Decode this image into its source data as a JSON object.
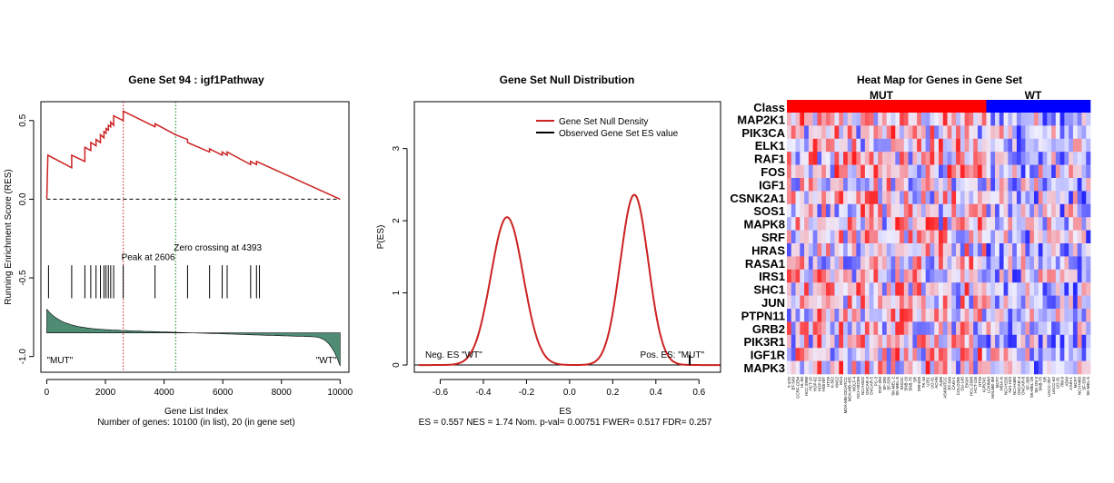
{
  "chart_data": [
    {
      "type": "line",
      "title": "Gene Set  94 : igf1Pathway",
      "xlabel": "Gene List Index",
      "ylabel": "Running Enrichment Score (RES)",
      "subtitle": "Number of genes: 10100 (in list), 20 (in gene set)",
      "xlim": [
        -200,
        10300
      ],
      "ylim": [
        -1.1,
        0.62
      ],
      "xticks": [
        0,
        2000,
        4000,
        6000,
        8000,
        10000
      ],
      "yticks": [
        0.5,
        0.0,
        -0.5,
        -1.0
      ],
      "ytick_labels": [
        "0.5",
        "0.0",
        "-0.5",
        "-1.0"
      ],
      "series": [
        {
          "x": [
            0,
            40,
            40,
            850,
            850,
            1300,
            1300,
            1500,
            1500,
            1680,
            1680,
            1830,
            1830,
            1950,
            1950,
            2020,
            2020,
            2100,
            2100,
            2180,
            2180,
            2280,
            2280,
            2606,
            2606,
            3690,
            3690,
            4393,
            4800,
            4800,
            5550,
            5550,
            5980,
            5980,
            6150,
            6150,
            6950,
            6950,
            7150,
            7150,
            10000
          ],
          "y": [
            0.0,
            0.28,
            0.28,
            0.2,
            0.28,
            0.24,
            0.33,
            0.31,
            0.36,
            0.34,
            0.38,
            0.36,
            0.41,
            0.39,
            0.43,
            0.42,
            0.45,
            0.44,
            0.47,
            0.46,
            0.49,
            0.47,
            0.53,
            0.5,
            0.56,
            0.46,
            0.48,
            0.41,
            0.38,
            0.36,
            0.3,
            0.32,
            0.28,
            0.3,
            0.28,
            0.3,
            0.22,
            0.24,
            0.22,
            0.24,
            0.0
          ]
        }
      ],
      "hit_positions": [
        60,
        850,
        1300,
        1500,
        1680,
        1830,
        1950,
        2020,
        2100,
        2180,
        2280,
        2606,
        3690,
        4800,
        5550,
        5980,
        6150,
        6950,
        7150,
        7250
      ],
      "ranked_metric_baseline": -0.85,
      "peak_label": "Peak at 2606",
      "peak_x": 2606,
      "zero_label": "Zero crossing at 4393",
      "zero_x": 4393,
      "left_label": "\"MUT\"",
      "right_label": "\"WT\"",
      "colors": {
        "line": "#cc2222",
        "fill": "#4f8c74",
        "peak": "#d04040",
        "zero": "#2e9a3a"
      }
    },
    {
      "type": "line",
      "title": "Gene Set Null Distribution",
      "xlabel": "ES",
      "ylabel": "P(ES)",
      "subtitle": "ES = 0.557  NES = 1.74 Nom. p-val= 0.00751 FWER= 0.517 FDR= 0.257",
      "xlim": [
        -0.72,
        0.7
      ],
      "ylim": [
        -0.1,
        3.65
      ],
      "xticks": [
        -0.6,
        -0.4,
        -0.2,
        0.0,
        0.2,
        0.4,
        0.6
      ],
      "xtick_labels": [
        "-0.6",
        "-0.4",
        "-0.2",
        "0.0",
        "0.2",
        "0.4",
        "0.6"
      ],
      "yticks": [
        0,
        1,
        2,
        3
      ],
      "legend": [
        "Gene Set Null Density",
        "Observed Gene Set ES value"
      ],
      "legend_placement": "top-right",
      "density_peaks": [
        {
          "center": -0.29,
          "height": 2.05,
          "sd": 0.075
        },
        {
          "center": 0.3,
          "height": 2.36,
          "sd": 0.065
        }
      ],
      "observed_es": 0.557,
      "left_label": "Neg. ES \"WT\"",
      "right_label": "Pos. ES: \"MUT\"",
      "colors": {
        "line": "#cc2222",
        "observed": "#000000"
      }
    },
    {
      "type": "heatmap",
      "title": "Heat Map for Genes in Gene Set",
      "class_label": "Class",
      "classes": [
        {
          "name": "MUT",
          "count": 46,
          "color": "#ff0000"
        },
        {
          "name": "WT",
          "count": 24,
          "color": "#0000ff"
        }
      ],
      "genes": [
        "MAP2K1",
        "PIK3CA",
        "ELK1",
        "RAF1",
        "FOS",
        "IGF1",
        "CSNK2A1",
        "SOS1",
        "MAPK8",
        "SRF",
        "HRAS",
        "RASA1",
        "IRS1",
        "SHC1",
        "JUN",
        "PTPN11",
        "GRB2",
        "PIK3R1",
        "IGF1R",
        "MAPK3"
      ],
      "samples": [
        "T-47D",
        "BT-549",
        "CCRF-CEM",
        "HL-60",
        "HCC-2998",
        "HCT-15",
        "HOP-62",
        "HOP-92",
        "HS578T",
        "HT29",
        "K-562",
        "KM12",
        "M14",
        "MDA-MB-231/ATCC",
        "MDA-MB-435",
        "MOLT-4",
        "NCI-H322M",
        "NCI-H522",
        "OVCAR-3",
        "OVCAR-5",
        "PC-3",
        "RXF-393",
        "SF-295",
        "SF-539",
        "SK-MEL-2",
        "SK-MEL-5",
        "SN12C",
        "SNB-19",
        "SNB-75",
        "SR",
        "SW-620",
        "TK-10",
        "U251",
        "UO-31",
        "ACHN",
        "A498",
        "A549/ATCC",
        "BT-549",
        "CAKI-1",
        "COLO205",
        "DU-145",
        "EKVX",
        "HCC-2998",
        "HCT-116",
        "HT29",
        "IGROV1",
        "LOXIMVI",
        "MALME-3M",
        "MCF7",
        "MDA-N",
        "NCI-H226",
        "NCI-H23",
        "NCI-H460",
        "OVCAR-4",
        "OVCAR-8",
        "SF-268",
        "SK-MEL-28",
        "SK-OV-3",
        "SNB-75",
        "SR",
        "UACC-257",
        "UACC-62",
        "UO-31",
        "786-0",
        "A549",
        "CAKI-1",
        "MCF7",
        "NCI-H460",
        "SF-539",
        "SK-MEL-5"
      ],
      "colors": {
        "low": "#1414ff",
        "mid": "#eeeeff",
        "high": "#ff1414"
      }
    }
  ]
}
